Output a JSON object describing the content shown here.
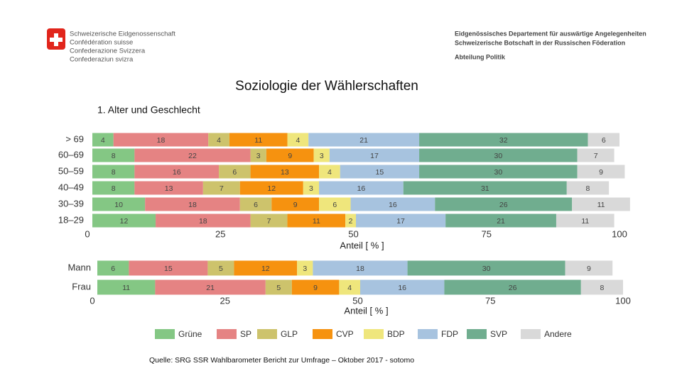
{
  "header": {
    "left": [
      "Schweizerische Eidgenossenschaft",
      "Confédération suisse",
      "Confederazione Svizzera",
      "Confederaziun svizra"
    ],
    "right": [
      "Eidgenössisches Departement für auswärtige Angelegenheiten",
      "Schweizerische Botschaft in der Russischen Föderation",
      "Abteilung Politik"
    ]
  },
  "title": "Soziologie der Wählerschaften",
  "subtitle": "1. Alter und Geschlecht",
  "legend": [
    {
      "name": "Grüne",
      "color": "#84c784"
    },
    {
      "name": "SP",
      "color": "#e58383"
    },
    {
      "name": "GLP",
      "color": "#cdc36c"
    },
    {
      "name": "CVP",
      "color": "#f6920f"
    },
    {
      "name": "BDP",
      "color": "#efe67c"
    },
    {
      "name": "FDP",
      "color": "#a7c3df"
    },
    {
      "name": "SVP",
      "color": "#70ad8f"
    },
    {
      "name": "Andere",
      "color": "#d9d9d9"
    }
  ],
  "chart_data": [
    {
      "type": "bar",
      "orientation": "horizontal",
      "stacked": true,
      "categories": [
        "> 69",
        "60–69",
        "50–59",
        "40–49",
        "30–39",
        "18–29"
      ],
      "series": [
        {
          "values": [
            4,
            8,
            8,
            8,
            10,
            12
          ]
        },
        {
          "values": [
            18,
            22,
            16,
            13,
            18,
            18
          ]
        },
        {
          "values": [
            4,
            3,
            6,
            7,
            6,
            7
          ]
        },
        {
          "values": [
            11,
            9,
            13,
            12,
            9,
            11
          ]
        },
        {
          "values": [
            4,
            3,
            4,
            3,
            6,
            2
          ]
        },
        {
          "values": [
            21,
            17,
            15,
            16,
            16,
            17
          ]
        },
        {
          "values": [
            32,
            30,
            30,
            31,
            26,
            21
          ]
        },
        {
          "values": [
            6,
            7,
            9,
            8,
            11,
            11
          ]
        }
      ],
      "xlim": [
        0,
        100
      ],
      "xticks": [
        0,
        25,
        50,
        75,
        100
      ],
      "xlabel": "Anteil [ % ]"
    },
    {
      "type": "bar",
      "orientation": "horizontal",
      "stacked": true,
      "categories": [
        "Mann",
        "Frau"
      ],
      "series": [
        {
          "values": [
            6,
            11
          ]
        },
        {
          "values": [
            15,
            21
          ]
        },
        {
          "values": [
            5,
            5
          ]
        },
        {
          "values": [
            12,
            9
          ]
        },
        {
          "values": [
            3,
            4
          ]
        },
        {
          "values": [
            18,
            16
          ]
        },
        {
          "values": [
            30,
            26
          ]
        },
        {
          "values": [
            9,
            8
          ]
        }
      ],
      "xlim": [
        0,
        100
      ],
      "xticks": [
        0,
        25,
        50,
        75,
        100
      ],
      "xlabel": "Anteil [ % ]"
    }
  ],
  "source": "Quelle: SRG SSR Wahlbarometer Bericht zur Umfrage – Oktober 2017 - sotomo"
}
